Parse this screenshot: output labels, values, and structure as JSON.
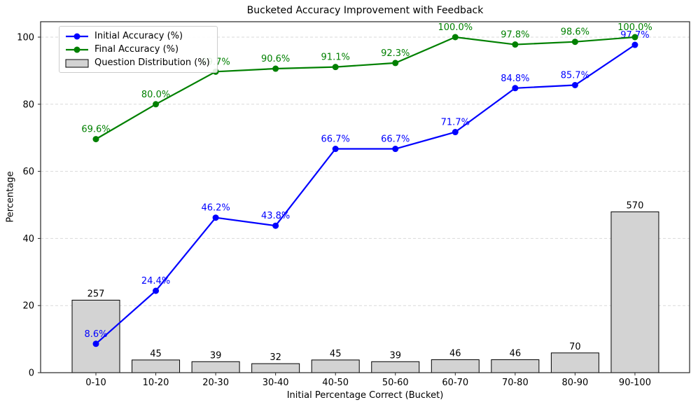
{
  "chart_data": {
    "type": "line+bar",
    "title": "Bucketed Accuracy Improvement with Feedback",
    "xlabel": "Initial Percentage Correct (Bucket)",
    "ylabel": "Percentage",
    "categories": [
      "0-10",
      "10-20",
      "20-30",
      "30-40",
      "40-50",
      "50-60",
      "60-70",
      "70-80",
      "80-90",
      "90-100"
    ],
    "yticks": [
      0,
      20,
      40,
      60,
      80,
      100
    ],
    "ylim": [
      0,
      105
    ],
    "grid": "horizontal dashed",
    "legend_position": "upper left",
    "series": [
      {
        "id": "initial-accuracy",
        "name": "Initial Accuracy (%)",
        "type": "line",
        "marker": "circle",
        "color": "#0000ff",
        "values": [
          8.6,
          24.4,
          46.2,
          43.8,
          66.7,
          66.7,
          71.7,
          84.8,
          85.7,
          97.7
        ],
        "labels": [
          "8.6%",
          "24.4%",
          "46.2%",
          "43.8%",
          "66.7%",
          "66.7%",
          "71.7%",
          "84.8%",
          "85.7%",
          "97.7%"
        ]
      },
      {
        "id": "final-accuracy",
        "name": "Final Accuracy (%)",
        "type": "line",
        "marker": "circle",
        "color": "#008000",
        "values": [
          69.6,
          80.0,
          89.7,
          90.6,
          91.1,
          92.3,
          100.0,
          97.8,
          98.6,
          100.0
        ],
        "labels": [
          "69.6%",
          "80.0%",
          "89.7%",
          "90.6%",
          "91.1%",
          "92.3%",
          "100.0%",
          "97.8%",
          "98.6%",
          "100.0%"
        ]
      },
      {
        "id": "question-distribution",
        "name": "Question Distribution (%)",
        "type": "bar",
        "color": "#d3d3d3",
        "edge_color": "#000000",
        "counts": [
          257,
          45,
          39,
          32,
          45,
          39,
          46,
          46,
          70,
          570
        ],
        "labels": [
          "257",
          "45",
          "39",
          "32",
          "45",
          "39",
          "46",
          "46",
          "70",
          "570"
        ],
        "percent_of_total": [
          21.6,
          3.8,
          3.3,
          2.7,
          3.8,
          3.3,
          3.9,
          3.9,
          5.9,
          47.9
        ]
      }
    ]
  }
}
